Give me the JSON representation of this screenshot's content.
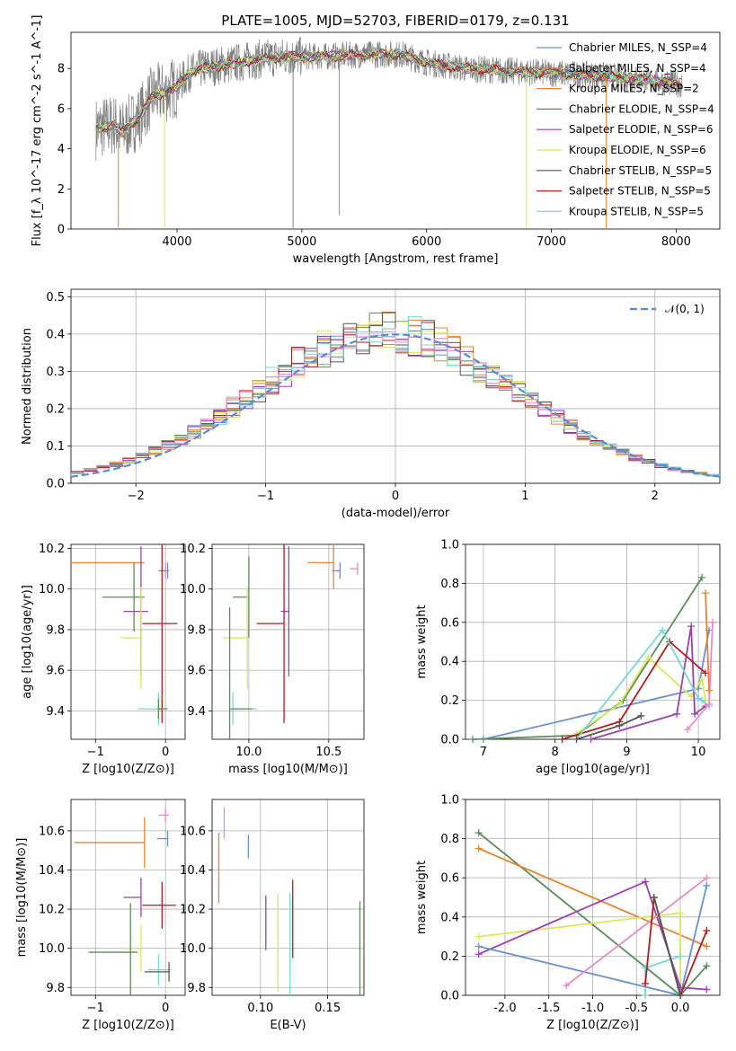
{
  "chart_data": [
    {
      "id": "spectrum",
      "type": "line",
      "title": "PLATE=1005, MJD=52703, FIBERID=0179, z=0.131",
      "xlabel": "wavelength [Angstrom, rest frame]",
      "ylabel": "Flux [f_λ 10^-17 erg cm^-2 s^-1 A^-1]",
      "xlim": [
        3150,
        8350
      ],
      "ylim": [
        0,
        9.8
      ],
      "xticks": [
        4000,
        5000,
        6000,
        7000,
        8000
      ],
      "yticks": [
        0,
        2,
        4,
        6,
        8
      ],
      "legend_position": "right",
      "legend": [
        {
          "label": "Chabrier MILES, N_SSP=4",
          "color": "#6a8fd6"
        },
        {
          "label": "Salpeter MILES, N_SSP=4",
          "color": "#e3852f"
        },
        {
          "label": "Kroupa MILES, N_SSP=2",
          "color": "#e3852f"
        },
        {
          "label": "Chabrier ELODIE, N_SSP=4",
          "color": "#5a8c5a"
        },
        {
          "label": "Salpeter ELODIE, N_SSP=6",
          "color": "#9b3fb3"
        },
        {
          "label": "Kroupa ELODIE, N_SSP=6",
          "color": "#d8e85a"
        },
        {
          "label": "Chabrier STELIB, N_SSP=5",
          "color": "#555555"
        },
        {
          "label": "Salpeter STELIB, N_SSP=5",
          "color": "#b01e1e"
        },
        {
          "label": "Kroupa STELIB, N_SSP=5",
          "color": "#7ad6d6"
        }
      ],
      "data_curve": {
        "x": [
          3350,
          3500,
          3550,
          3700,
          3800,
          3900,
          4000,
          4100,
          4200,
          4300,
          4500,
          4700,
          4900,
          5200,
          5500,
          5800,
          6000,
          6300,
          6600,
          6900,
          7200,
          7500,
          7800,
          8050
        ],
        "y": [
          5.0,
          5.2,
          4.8,
          5.6,
          6.6,
          6.8,
          7.1,
          7.8,
          8.0,
          8.1,
          8.3,
          8.5,
          8.6,
          8.6,
          8.7,
          8.7,
          8.3,
          8.0,
          7.9,
          7.8,
          7.7,
          7.6,
          7.4,
          7.2
        ]
      }
    },
    {
      "id": "residuals",
      "type": "line",
      "xlabel": "(data-model)/error",
      "ylabel": "Normed distribution",
      "xlim": [
        -2.5,
        2.5
      ],
      "ylim": [
        0,
        0.52
      ],
      "xticks": [
        -2,
        -1,
        0,
        1,
        2
      ],
      "yticks": [
        0.0,
        0.1,
        0.2,
        0.3,
        0.4,
        0.5
      ],
      "legend_label": "𝒩(0, 1)",
      "legend_position": "top-right",
      "normal_color": "#5b8bd6"
    },
    {
      "id": "age-vs-z",
      "type": "scatter",
      "xlabel": "Z [log10(Z/Z⊙)]",
      "ylabel": "age [log10(age/yr)]",
      "xlim": [
        -1.35,
        0.28
      ],
      "ylim": [
        9.26,
        10.22
      ],
      "xticks": [
        -1,
        0
      ],
      "yticks": [
        9.4,
        9.6,
        9.8,
        10.0,
        10.2
      ],
      "points": [
        {
          "x": -0.3,
          "y": 10.13,
          "xerr": [
            1.05,
            0
          ],
          "yerr": 0,
          "color": "#e3852f"
        },
        {
          "x": 0.0,
          "y": 10.09,
          "xerr": [
            0.08,
            0.05
          ],
          "yerr": 0.04,
          "color": "#e78ac3"
        },
        {
          "x": 0.03,
          "y": 10.09,
          "xerr": [
            0.13,
            0.0
          ],
          "yerr": 0.04,
          "color": "#6a8fd6"
        },
        {
          "x": -0.45,
          "y": 9.96,
          "xerr": [
            0.45,
            0.15
          ],
          "yerr": 0.17,
          "color": "#5a8c5a"
        },
        {
          "x": -0.35,
          "y": 9.89,
          "xerr": [
            0.25,
            0.1
          ],
          "yerr": 0.32,
          "color": "#9b3fb3"
        },
        {
          "x": -0.05,
          "y": 9.83,
          "xerr": [
            0.28,
            0.22
          ],
          "yerr": 0.49,
          "color": "#b01e1e"
        },
        {
          "x": -0.35,
          "y": 9.76,
          "xerr": [
            0.3,
            0.0
          ],
          "yerr": 0.25,
          "color": "#d8e85a"
        },
        {
          "x": -0.1,
          "y": 9.41,
          "xerr": [
            0.3,
            0.05
          ],
          "yerr": 0.08,
          "color": "#7ad6d6"
        },
        {
          "x": -0.1,
          "y": 9.41,
          "xerr": [
            0.0,
            0.13
          ],
          "yerr": 0.05,
          "color": "#5a8c5a"
        }
      ]
    },
    {
      "id": "age-vs-mass",
      "type": "scatter",
      "xlabel": "mass [log10(M/M⊙)]",
      "xlim": [
        9.77,
        10.72
      ],
      "ylim": [
        9.26,
        10.22
      ],
      "xticks": [
        10.0,
        10.5
      ],
      "yticks": [
        9.4,
        9.6,
        9.8,
        10.0,
        10.2
      ],
      "points": [
        {
          "x": 10.53,
          "y": 10.13,
          "xerr": [
            0.16,
            0.0
          ],
          "yerr": 0.13,
          "color": "#e3852f"
        },
        {
          "x": 10.68,
          "y": 10.1,
          "xerr": [
            0.05,
            0.0
          ],
          "yerr": 0.03,
          "color": "#e78ac3"
        },
        {
          "x": 10.57,
          "y": 10.09,
          "xerr": [
            0.05,
            0.0
          ],
          "yerr": 0.04,
          "color": "#6a8fd6"
        },
        {
          "x": 10.0,
          "y": 9.96,
          "xerr": [
            0.1,
            0.0
          ],
          "yerr": 0.2,
          "color": "#5a8c5a"
        },
        {
          "x": 10.25,
          "y": 9.89,
          "xerr": [
            0.05,
            0.0
          ],
          "yerr": 0.32,
          "color": "#9b3fb3"
        },
        {
          "x": 10.22,
          "y": 9.83,
          "xerr": [
            0.17,
            0.0
          ],
          "yerr": 0.49,
          "color": "#b01e1e"
        },
        {
          "x": 9.99,
          "y": 9.76,
          "xerr": [
            0.15,
            0.0
          ],
          "yerr": 0.25,
          "color": "#d8e85a"
        },
        {
          "x": 9.9,
          "y": 9.41,
          "xerr": [
            0.0,
            0.15
          ],
          "yerr": 0.08,
          "color": "#7ad6d6"
        },
        {
          "x": 9.88,
          "y": 9.41,
          "xerr": [
            0.0,
            0.14
          ],
          "yerr": 0.5,
          "color": "#5a8c5a"
        }
      ]
    },
    {
      "id": "mass-weight-vs-age",
      "type": "line",
      "xlabel": "age [log10(age/yr)]",
      "ylabel": "mass weight",
      "xlim": [
        6.75,
        10.3
      ],
      "ylim": [
        0,
        1.0
      ],
      "xticks": [
        7,
        8,
        9,
        10
      ],
      "yticks": [
        0.0,
        0.2,
        0.4,
        0.6,
        0.8,
        1.0
      ],
      "series": [
        {
          "color": "#6a8fd6",
          "x": [
            7.0,
            10.0,
            10.15
          ],
          "y": [
            0.0,
            0.26,
            0.56
          ]
        },
        {
          "color": "#5a8c5a",
          "x": [
            6.85,
            8.3,
            8.95,
            10.05
          ],
          "y": [
            0.0,
            0.02,
            0.2,
            0.83
          ]
        },
        {
          "color": "#d8e85a",
          "x": [
            8.3,
            8.9,
            9.3,
            9.9,
            10.05,
            10.1
          ],
          "y": [
            0.03,
            0.18,
            0.42,
            0.22,
            0.31,
            0.2
          ]
        },
        {
          "color": "#9b3fb3",
          "x": [
            8.5,
            9.7,
            9.9,
            9.95,
            10.1
          ],
          "y": [
            0.0,
            0.13,
            0.58,
            0.13,
            0.17
          ]
        },
        {
          "color": "#b01e1e",
          "x": [
            8.1,
            8.9,
            9.6,
            10.1
          ],
          "y": [
            0.0,
            0.09,
            0.5,
            0.34
          ]
        },
        {
          "color": "#7ad6d6",
          "x": [
            8.3,
            9.5,
            10.0,
            10.05,
            10.15
          ],
          "y": [
            0.0,
            0.56,
            0.21,
            0.2,
            0.17
          ]
        },
        {
          "color": "#e78ac3",
          "x": [
            9.85,
            10.15,
            10.2
          ],
          "y": [
            0.05,
            0.18,
            0.6
          ]
        },
        {
          "color": "#e3852f",
          "x": [
            10.1,
            10.15
          ],
          "y": [
            0.75,
            0.25
          ]
        },
        {
          "color": "#555555",
          "x": [
            8.3,
            8.9,
            9.2
          ],
          "y": [
            0.0,
            0.07,
            0.12
          ]
        }
      ]
    },
    {
      "id": "mass-vs-z",
      "type": "scatter",
      "xlabel": "Z [log10(Z/Z⊙)]",
      "ylabel": "mass [log10(M/M⊙)]",
      "xlim": [
        -1.35,
        0.28
      ],
      "ylim": [
        9.76,
        10.76
      ],
      "xticks": [
        -1,
        0
      ],
      "yticks": [
        9.8,
        10.0,
        10.2,
        10.4,
        10.6
      ],
      "points": [
        {
          "x": -0.3,
          "y": 10.54,
          "xerr": [
            1.0,
            0
          ],
          "yerr": 0.13,
          "color": "#e3852f"
        },
        {
          "x": 0.0,
          "y": 10.68,
          "xerr": [
            0.1,
            0.05
          ],
          "yerr": 0.04,
          "color": "#e78ac3"
        },
        {
          "x": 0.03,
          "y": 10.56,
          "xerr": [
            0.15,
            0.0
          ],
          "yerr": 0.04,
          "color": "#6a8fd6"
        },
        {
          "x": -0.35,
          "y": 10.26,
          "xerr": [
            0.25,
            0.0
          ],
          "yerr": 0.1,
          "color": "#9b3fb3"
        },
        {
          "x": -0.05,
          "y": 10.22,
          "xerr": [
            0.28,
            0.2
          ],
          "yerr": 0.12,
          "color": "#b01e1e"
        },
        {
          "x": -0.35,
          "y": 10.0,
          "xerr": [
            0.25,
            0.0
          ],
          "yerr": 0.12,
          "color": "#d8e85a"
        },
        {
          "x": -0.5,
          "y": 9.98,
          "xerr": [
            0.6,
            0.1
          ],
          "yerr": 0.25,
          "color": "#5a8c5a"
        },
        {
          "x": -0.1,
          "y": 9.89,
          "xerr": [
            0.15,
            0.18
          ],
          "yerr": 0.08,
          "color": "#7ad6d6"
        },
        {
          "x": 0.05,
          "y": 9.88,
          "xerr": [
            0.35,
            0.0
          ],
          "yerr": 0.05,
          "color": "#555555"
        }
      ]
    },
    {
      "id": "mass-vs-ebv",
      "type": "scatter",
      "xlabel": "E(B-V)",
      "xlim": [
        0.064,
        0.177
      ],
      "ylim": [
        9.76,
        10.76
      ],
      "xticks": [
        0.1,
        0.15
      ],
      "yticks": [
        9.8,
        10.0,
        10.2,
        10.4,
        10.6
      ],
      "points": [
        {
          "x": 0.069,
          "y": 10.41,
          "yerr": 0.18,
          "color": "#e3852f"
        },
        {
          "x": 0.073,
          "y": 10.64,
          "yerr": 0.08,
          "color": "#e78ac3"
        },
        {
          "x": 0.091,
          "y": 10.52,
          "yerr": 0.06,
          "color": "#6a8fd6"
        },
        {
          "x": 0.104,
          "y": 10.13,
          "yerr": 0.14,
          "color": "#9b3fb3"
        },
        {
          "x": 0.113,
          "y": 10.03,
          "yerr": 0.25,
          "color": "#d8e85a"
        },
        {
          "x": 0.122,
          "y": 10.02,
          "yerr": 0.26,
          "color": "#7ad6d6"
        },
        {
          "x": 0.124,
          "y": 10.15,
          "yerr": 0.2,
          "color": "#b01e1e"
        },
        {
          "x": 0.174,
          "y": 10.0,
          "yerr": 0.24,
          "color": "#5a8c5a"
        }
      ]
    },
    {
      "id": "mass-weight-vs-z",
      "type": "line",
      "xlabel": "Z [log10(Z/Z⊙)]",
      "ylabel": "mass weight",
      "xlim": [
        -2.45,
        0.45
      ],
      "ylim": [
        0,
        1.0
      ],
      "xticks": [
        -2.0,
        -1.5,
        -1.0,
        -0.5,
        0.0
      ],
      "yticks": [
        0.0,
        0.2,
        0.4,
        0.6,
        0.8,
        1.0
      ],
      "series": [
        {
          "color": "#5a8c5a",
          "x": [
            -2.3,
            0.0,
            0.3
          ],
          "y": [
            0.83,
            0.0,
            0.15
          ]
        },
        {
          "color": "#e3852f",
          "x": [
            -2.3,
            0.3
          ],
          "y": [
            0.75,
            0.25
          ]
        },
        {
          "color": "#d8e85a",
          "x": [
            -2.3,
            0.0,
            0.0
          ],
          "y": [
            0.3,
            0.42,
            0.0
          ]
        },
        {
          "color": "#9b3fb3",
          "x": [
            -2.3,
            -0.4,
            0.0,
            0.3
          ],
          "y": [
            0.21,
            0.58,
            0.04,
            0.03
          ]
        },
        {
          "color": "#6a8fd6",
          "x": [
            -2.3,
            0.0,
            0.3
          ],
          "y": [
            0.25,
            0.0,
            0.56
          ]
        },
        {
          "color": "#e78ac3",
          "x": [
            -1.3,
            0.3
          ],
          "y": [
            0.05,
            0.6
          ]
        },
        {
          "color": "#7ad6d6",
          "x": [
            -0.4,
            -0.4,
            0.0
          ],
          "y": [
            0.0,
            0.14,
            0.2
          ]
        },
        {
          "color": "#b01e1e",
          "x": [
            -0.4,
            -0.3,
            0.0,
            0.3
          ],
          "y": [
            0.06,
            0.5,
            0.0,
            0.33
          ]
        },
        {
          "color": "#555555",
          "x": [
            -0.3,
            0.0
          ],
          "y": [
            0.5,
            0.0
          ]
        }
      ]
    }
  ]
}
